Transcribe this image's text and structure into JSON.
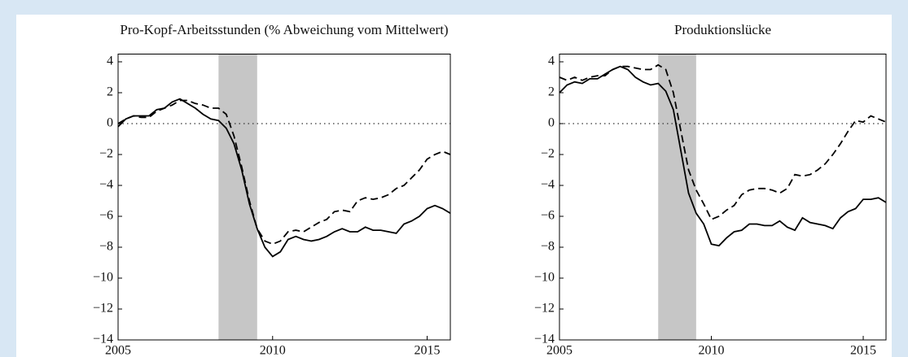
{
  "chart_data": [
    {
      "type": "line",
      "title": "Pro-Kopf-Arbeitsstunden (% Abweichung vom Mittelwert)",
      "x": [
        2005,
        2005.25,
        2005.5,
        2005.75,
        2006,
        2006.25,
        2006.5,
        2006.75,
        2007,
        2007.25,
        2007.5,
        2007.75,
        2008,
        2008.25,
        2008.5,
        2008.75,
        2009,
        2009.25,
        2009.5,
        2009.75,
        2010,
        2010.25,
        2010.5,
        2010.75,
        2011,
        2011.25,
        2011.5,
        2011.75,
        2012,
        2012.25,
        2012.5,
        2012.75,
        2013,
        2013.25,
        2013.5,
        2013.75,
        2014,
        2014.25,
        2014.5,
        2014.75,
        2015,
        2015.25,
        2015.5,
        2015.75
      ],
      "series": [
        {
          "color": "#000000",
          "dash": false,
          "values": [
            -0.2,
            0.3,
            0.5,
            0.5,
            0.5,
            0.9,
            1.0,
            1.4,
            1.6,
            1.3,
            1.0,
            0.6,
            0.3,
            0.2,
            -0.3,
            -1.3,
            -3.0,
            -5.2,
            -6.8,
            -8.0,
            -8.6,
            -8.3,
            -7.5,
            -7.3,
            -7.5,
            -7.6,
            -7.5,
            -7.3,
            -7.0,
            -6.8,
            -7.0,
            -7.0,
            -6.7,
            -6.9,
            -6.9,
            -7.0,
            -7.1,
            -6.5,
            -6.3,
            -6.0,
            -5.5,
            -5.3,
            -5.5,
            -5.8
          ]
        },
        {
          "color": "#000000",
          "dash": true,
          "values": [
            0,
            0.3,
            0.5,
            0.4,
            0.4,
            0.8,
            1.0,
            1.2,
            1.5,
            1.5,
            1.3,
            1.2,
            1.0,
            1.0,
            0.6,
            -0.8,
            -2.8,
            -5.0,
            -6.8,
            -7.6,
            -7.8,
            -7.6,
            -7.0,
            -6.9,
            -7.0,
            -6.7,
            -6.4,
            -6.2,
            -5.7,
            -5.6,
            -5.7,
            -5.0,
            -4.8,
            -4.9,
            -4.8,
            -4.6,
            -4.2,
            -4.0,
            -3.5,
            -3.0,
            -2.3,
            -2.0,
            -1.8,
            -2.0
          ]
        }
      ],
      "shade": [
        2008.25,
        2009.5
      ],
      "hline": 0,
      "xlim": [
        2005,
        2015.75
      ],
      "xticks": [
        2005,
        2010,
        2015
      ],
      "ylim": [
        -14,
        4.5
      ],
      "yticks": [
        {
          "value": -14,
          "label": "−14"
        },
        {
          "value": -12,
          "label": "−12"
        },
        {
          "value": -10,
          "label": "−10"
        },
        {
          "value": -8,
          "label": "−8"
        },
        {
          "value": -6,
          "label": "−6"
        },
        {
          "value": -4,
          "label": "−4"
        },
        {
          "value": -2,
          "label": "−2"
        },
        0,
        2,
        4
      ]
    },
    {
      "type": "line",
      "title": "Produktionslücke",
      "x": [
        2005,
        2005.25,
        2005.5,
        2005.75,
        2006,
        2006.25,
        2006.5,
        2006.75,
        2007,
        2007.25,
        2007.5,
        2007.75,
        2008,
        2008.25,
        2008.5,
        2008.75,
        2009,
        2009.25,
        2009.5,
        2009.75,
        2010,
        2010.25,
        2010.5,
        2010.75,
        2011,
        2011.25,
        2011.5,
        2011.75,
        2012,
        2012.25,
        2012.5,
        2012.75,
        2013,
        2013.25,
        2013.5,
        2013.75,
        2014,
        2014.25,
        2014.5,
        2014.75,
        2015,
        2015.25,
        2015.5,
        2015.75
      ],
      "series": [
        {
          "color": "#000000",
          "dash": false,
          "values": [
            2.0,
            2.5,
            2.7,
            2.6,
            2.9,
            2.9,
            3.2,
            3.5,
            3.7,
            3.5,
            3.0,
            2.7,
            2.5,
            2.6,
            2.1,
            0.9,
            -1.8,
            -4.5,
            -5.8,
            -6.5,
            -7.8,
            -7.9,
            -7.4,
            -7.0,
            -6.9,
            -6.5,
            -6.5,
            -6.6,
            -6.6,
            -6.3,
            -6.7,
            -6.9,
            -6.1,
            -6.4,
            -6.5,
            -6.6,
            -6.8,
            -6.1,
            -5.7,
            -5.5,
            -4.9,
            -4.9,
            -4.8,
            -5.1
          ]
        },
        {
          "color": "#000000",
          "dash": true,
          "values": [
            3.0,
            2.8,
            3.0,
            2.8,
            3.0,
            3.1,
            3.1,
            3.5,
            3.7,
            3.7,
            3.6,
            3.5,
            3.5,
            3.8,
            3.5,
            2.0,
            -0.5,
            -3.0,
            -4.3,
            -5.2,
            -6.2,
            -6.0,
            -5.6,
            -5.3,
            -4.6,
            -4.3,
            -4.2,
            -4.2,
            -4.3,
            -4.5,
            -4.2,
            -3.3,
            -3.4,
            -3.3,
            -3.0,
            -2.6,
            -2.0,
            -1.3,
            -0.5,
            0.2,
            0.1,
            0.5,
            0.3,
            0.1
          ]
        }
      ],
      "shade": [
        2008.25,
        2009.5
      ],
      "hline": 0,
      "xlim": [
        2005,
        2015.75
      ],
      "xticks": [
        2005,
        2010,
        2015
      ],
      "ylim": [
        -14,
        4.5
      ],
      "yticks": [
        {
          "value": -14,
          "label": "−14"
        },
        {
          "value": -12,
          "label": "−12"
        },
        {
          "value": -10,
          "label": "−10"
        },
        {
          "value": -8,
          "label": "−8"
        },
        {
          "value": -6,
          "label": "−6"
        },
        {
          "value": -4,
          "label": "−4"
        },
        {
          "value": -2,
          "label": "−2"
        },
        0,
        2,
        4
      ]
    }
  ]
}
